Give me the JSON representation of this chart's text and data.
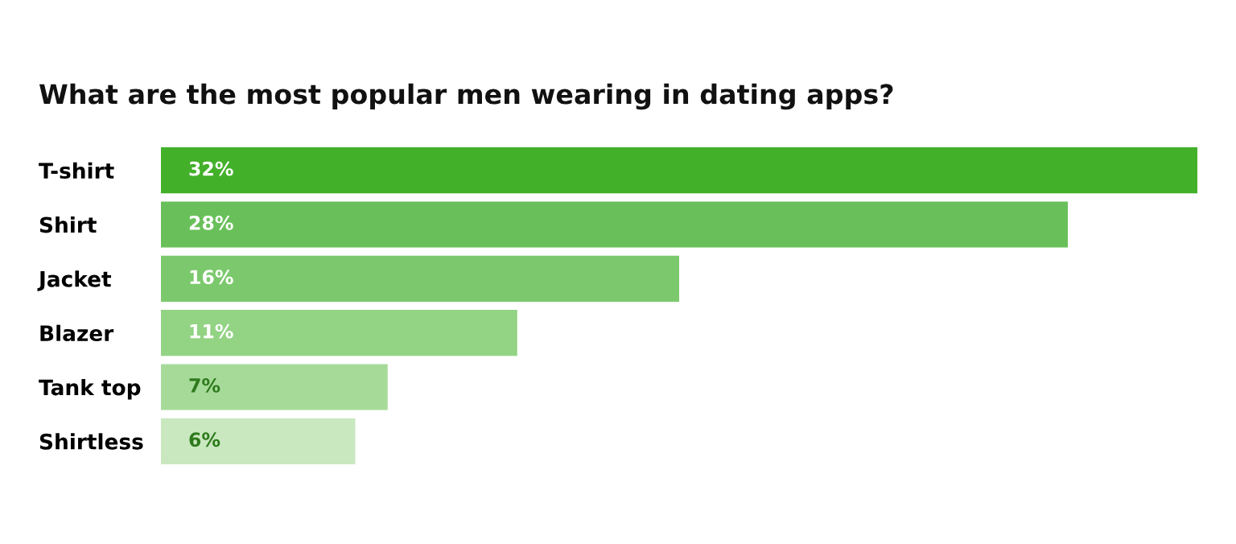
{
  "chart_data": {
    "type": "bar",
    "orientation": "horizontal",
    "title": "What are the most popular men wearing in dating apps?",
    "categories": [
      "T-shirt",
      "Shirt",
      "Jacket",
      "Blazer",
      "Tank top",
      "Shirtless"
    ],
    "values": [
      32,
      28,
      16,
      11,
      7,
      6
    ],
    "colors": [
      "#43b02a",
      "#69c05a",
      "#7cc96d",
      "#92d384",
      "#a6da99",
      "#c9e8c0"
    ],
    "value_labels": [
      "32%",
      "28%",
      "16%",
      "11%",
      "7%",
      "6%"
    ],
    "grid": false,
    "legend": false
  }
}
